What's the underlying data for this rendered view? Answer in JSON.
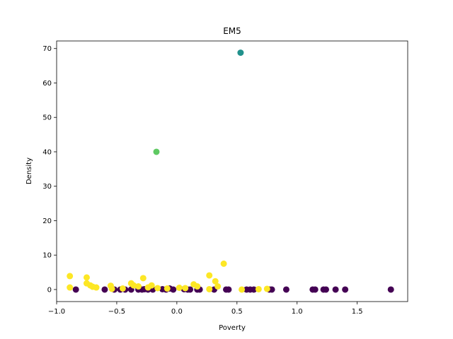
{
  "chart_data": {
    "type": "scatter",
    "title": "EM5",
    "xlabel": "Poverty",
    "ylabel": "Density",
    "xlim": [
      -1.0,
      1.92
    ],
    "ylim": [
      -3.5,
      72.2
    ],
    "xticks": [
      -1.0,
      -0.5,
      0.0,
      0.5,
      1.0,
      1.5
    ],
    "xtick_labels": [
      "−1.0",
      "−0.5",
      "0.0",
      "0.5",
      "1.0",
      "1.5"
    ],
    "yticks": [
      0,
      10,
      20,
      30,
      40,
      50,
      60,
      70
    ],
    "ytick_labels": [
      "0",
      "10",
      "20",
      "30",
      "40",
      "50",
      "60",
      "70"
    ],
    "grid": false,
    "colors": {
      "purple": "#440154",
      "teal": "#21918c",
      "green": "#5ec962",
      "yellow": "#fde725"
    },
    "points": [
      {
        "x": 0.53,
        "y": 68.8,
        "c": "teal"
      },
      {
        "x": -0.17,
        "y": 40.0,
        "c": "green"
      },
      {
        "x": -0.89,
        "y": 3.9,
        "c": "yellow"
      },
      {
        "x": -0.89,
        "y": 0.6,
        "c": "yellow"
      },
      {
        "x": -0.75,
        "y": 3.5,
        "c": "yellow"
      },
      {
        "x": -0.75,
        "y": 1.8,
        "c": "yellow"
      },
      {
        "x": -0.72,
        "y": 1.2,
        "c": "yellow"
      },
      {
        "x": -0.7,
        "y": 0.8,
        "c": "yellow"
      },
      {
        "x": -0.67,
        "y": 0.6,
        "c": "yellow"
      },
      {
        "x": -0.55,
        "y": 1.1,
        "c": "yellow"
      },
      {
        "x": -0.54,
        "y": 0.2,
        "c": "yellow"
      },
      {
        "x": -0.45,
        "y": 0.3,
        "c": "yellow"
      },
      {
        "x": -0.38,
        "y": 1.8,
        "c": "yellow"
      },
      {
        "x": -0.36,
        "y": 1.2,
        "c": "yellow"
      },
      {
        "x": -0.32,
        "y": 0.9,
        "c": "yellow"
      },
      {
        "x": -0.28,
        "y": 3.3,
        "c": "yellow"
      },
      {
        "x": -0.24,
        "y": 0.6,
        "c": "yellow"
      },
      {
        "x": -0.21,
        "y": 1.2,
        "c": "yellow"
      },
      {
        "x": -0.16,
        "y": 0.4,
        "c": "yellow"
      },
      {
        "x": -0.08,
        "y": 0.3,
        "c": "yellow"
      },
      {
        "x": 0.02,
        "y": 0.5,
        "c": "yellow"
      },
      {
        "x": 0.07,
        "y": 0.4,
        "c": "yellow"
      },
      {
        "x": 0.14,
        "y": 1.5,
        "c": "yellow"
      },
      {
        "x": 0.17,
        "y": 0.9,
        "c": "yellow"
      },
      {
        "x": 0.27,
        "y": 4.1,
        "c": "yellow"
      },
      {
        "x": 0.27,
        "y": 0.1,
        "c": "yellow"
      },
      {
        "x": 0.32,
        "y": 2.4,
        "c": "yellow"
      },
      {
        "x": 0.34,
        "y": 0.9,
        "c": "yellow"
      },
      {
        "x": 0.39,
        "y": 7.5,
        "c": "yellow"
      },
      {
        "x": 0.54,
        "y": 0.0,
        "c": "yellow"
      },
      {
        "x": 0.68,
        "y": 0.1,
        "c": "yellow"
      },
      {
        "x": 0.75,
        "y": 0.2,
        "c": "yellow"
      },
      {
        "x": -0.84,
        "y": 0.0,
        "c": "purple"
      },
      {
        "x": -0.6,
        "y": 0.0,
        "c": "purple"
      },
      {
        "x": -0.52,
        "y": 0.0,
        "c": "purple"
      },
      {
        "x": -0.47,
        "y": 0.0,
        "c": "purple"
      },
      {
        "x": -0.43,
        "y": 0.0,
        "c": "purple"
      },
      {
        "x": -0.38,
        "y": 0.0,
        "c": "purple"
      },
      {
        "x": -0.32,
        "y": 0.0,
        "c": "purple"
      },
      {
        "x": -0.29,
        "y": 0.0,
        "c": "purple"
      },
      {
        "x": -0.27,
        "y": 0.1,
        "c": "purple"
      },
      {
        "x": -0.24,
        "y": 0.0,
        "c": "purple"
      },
      {
        "x": -0.2,
        "y": 0.0,
        "c": "purple"
      },
      {
        "x": -0.12,
        "y": 0.1,
        "c": "purple"
      },
      {
        "x": -0.09,
        "y": 0.0,
        "c": "purple"
      },
      {
        "x": -0.06,
        "y": 0.3,
        "c": "purple"
      },
      {
        "x": -0.03,
        "y": 0.0,
        "c": "purple"
      },
      {
        "x": 0.06,
        "y": 0.1,
        "c": "purple"
      },
      {
        "x": 0.09,
        "y": 0.0,
        "c": "purple"
      },
      {
        "x": 0.11,
        "y": 0.0,
        "c": "purple"
      },
      {
        "x": 0.17,
        "y": 0.0,
        "c": "purple"
      },
      {
        "x": 0.19,
        "y": 0.0,
        "c": "purple"
      },
      {
        "x": 0.31,
        "y": 0.0,
        "c": "purple"
      },
      {
        "x": 0.41,
        "y": 0.0,
        "c": "purple"
      },
      {
        "x": 0.43,
        "y": 0.0,
        "c": "purple"
      },
      {
        "x": 0.58,
        "y": 0.0,
        "c": "purple"
      },
      {
        "x": 0.61,
        "y": 0.0,
        "c": "purple"
      },
      {
        "x": 0.64,
        "y": 0.0,
        "c": "purple"
      },
      {
        "x": 0.77,
        "y": 0.0,
        "c": "purple"
      },
      {
        "x": 0.79,
        "y": 0.0,
        "c": "purple"
      },
      {
        "x": 0.91,
        "y": 0.0,
        "c": "purple"
      },
      {
        "x": 1.13,
        "y": 0.0,
        "c": "purple"
      },
      {
        "x": 1.15,
        "y": 0.0,
        "c": "purple"
      },
      {
        "x": 1.22,
        "y": 0.0,
        "c": "purple"
      },
      {
        "x": 1.24,
        "y": 0.0,
        "c": "purple"
      },
      {
        "x": 1.32,
        "y": 0.0,
        "c": "purple"
      },
      {
        "x": 1.4,
        "y": 0.0,
        "c": "purple"
      },
      {
        "x": 1.78,
        "y": 0.0,
        "c": "purple"
      }
    ]
  }
}
